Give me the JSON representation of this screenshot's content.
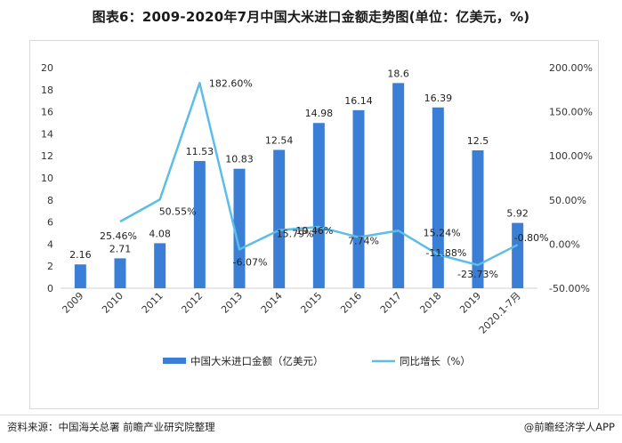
{
  "title": "图表6：2009-2020年7月中国大米进口金额走势图(单位：亿美元，%)",
  "footer": {
    "source": "资料来源：中国海关总署 前瞻产业研究院整理",
    "brand": "@前瞻经济学人APP"
  },
  "colors": {
    "bar": "#3a7fd5",
    "line": "#5bbde8"
  },
  "chart_data": {
    "type": "bar",
    "categories": [
      "2009",
      "2010",
      "2011",
      "2012",
      "2013",
      "2014",
      "2015",
      "2016",
      "2017",
      "2018",
      "2019",
      "2020.1-7月"
    ],
    "series": [
      {
        "name": "中国大米进口金额（亿美元）",
        "type": "bar",
        "axis": "left",
        "values": [
          2.16,
          2.71,
          4.08,
          11.53,
          10.83,
          12.54,
          14.98,
          16.14,
          18.6,
          16.39,
          12.5,
          5.92
        ],
        "labels": [
          "2.16",
          "2.71",
          "4.08",
          "11.53",
          "10.83",
          "12.54",
          "14.98",
          "16.14",
          "18.6",
          "16.39",
          "12.5",
          "5.92"
        ]
      },
      {
        "name": "同比增长（%）",
        "type": "line",
        "axis": "right",
        "values": [
          null,
          25.46,
          50.55,
          182.6,
          -6.07,
          15.79,
          19.46,
          7.74,
          15.24,
          -11.88,
          -23.73,
          -0.8
        ],
        "labels": [
          "",
          "25.46%",
          "50.55%",
          "182.60%",
          "-6.07%",
          "15.79%",
          "19.46%",
          "7.74%",
          "15.24%",
          "-11.88%",
          "-23.73%",
          "-0.80%"
        ]
      }
    ],
    "y_left": {
      "min": 0,
      "max": 20,
      "ticks": [
        "0",
        "2",
        "4",
        "6",
        "8",
        "10",
        "12",
        "14",
        "16",
        "18",
        "20"
      ]
    },
    "y_right": {
      "min": -50,
      "max": 200,
      "ticks": [
        "-50.00%",
        "0.00%",
        "50.00%",
        "100.00%",
        "150.00%",
        "200.00%"
      ]
    },
    "grid": false,
    "legend_position": "bottom"
  }
}
